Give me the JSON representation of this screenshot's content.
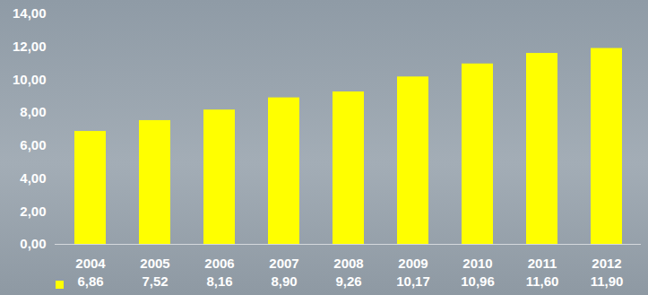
{
  "chart_data": {
    "type": "bar",
    "categories": [
      "2004",
      "2005",
      "2006",
      "2007",
      "2008",
      "2009",
      "2010",
      "2011",
      "2012"
    ],
    "values": [
      6.86,
      7.52,
      8.16,
      8.9,
      9.26,
      10.17,
      10.96,
      11.6,
      11.9
    ],
    "value_labels": [
      "6,86",
      "7,52",
      "8,16",
      "8,90",
      "9,26",
      "10,17",
      "10,96",
      "11,60",
      "11,90"
    ],
    "data_labels": true,
    "color": "#ffff00",
    "ylim": [
      0,
      14
    ],
    "yticks": [
      {
        "value": 0,
        "label": "0,00"
      },
      {
        "value": 2,
        "label": "2,00"
      },
      {
        "value": 4,
        "label": "4,00"
      },
      {
        "value": 6,
        "label": "6,00"
      },
      {
        "value": 8,
        "label": "8,00"
      },
      {
        "value": 10,
        "label": "10,00"
      },
      {
        "value": 12,
        "label": "12,00"
      },
      {
        "value": 14,
        "label": "14,00"
      }
    ],
    "grid": false
  }
}
